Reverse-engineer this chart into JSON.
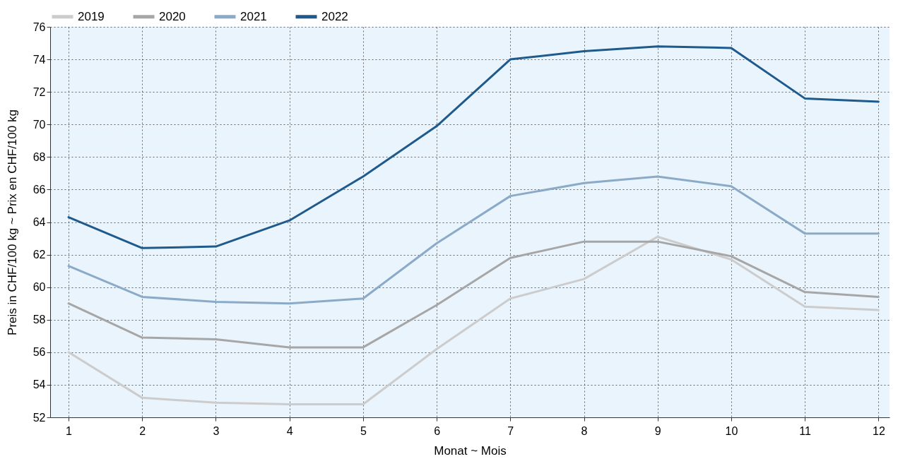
{
  "chart_data": {
    "type": "line",
    "xlabel": "Monat   ~   Mois",
    "ylabel": "Preis in CHF/100 kg   ~   Prix en CHF/100 kg",
    "x": [
      1,
      2,
      3,
      4,
      5,
      6,
      7,
      8,
      9,
      10,
      11,
      12
    ],
    "xlim": [
      0.75,
      12.15
    ],
    "xticks": [
      1,
      2,
      3,
      4,
      5,
      6,
      7,
      8,
      9,
      10,
      11,
      12
    ],
    "ylim": [
      52,
      76
    ],
    "yticks": [
      52,
      54,
      56,
      58,
      60,
      62,
      64,
      66,
      68,
      70,
      72,
      74,
      76
    ],
    "grid": true,
    "legend": "top left",
    "marker": "none",
    "line_style": "solid",
    "series": [
      {
        "name": "2019",
        "color": "#cccccc",
        "values": [
          56.0,
          53.2,
          52.9,
          52.8,
          52.8,
          56.2,
          59.3,
          60.5,
          63.1,
          61.7,
          58.8,
          58.6
        ]
      },
      {
        "name": "2020",
        "color": "#a6a6a6",
        "values": [
          59.0,
          56.9,
          56.8,
          56.3,
          56.3,
          58.9,
          61.8,
          62.8,
          62.8,
          61.9,
          59.7,
          59.4
        ]
      },
      {
        "name": "2021",
        "color": "#8aaac8",
        "values": [
          61.3,
          59.4,
          59.1,
          59.0,
          59.3,
          62.7,
          65.6,
          66.4,
          66.8,
          66.2,
          63.3,
          63.3
        ]
      },
      {
        "name": "2022",
        "color": "#1f5a8c",
        "values": [
          64.3,
          62.4,
          62.5,
          64.1,
          66.8,
          69.9,
          74.0,
          74.5,
          74.8,
          74.7,
          71.6,
          71.4
        ]
      }
    ]
  }
}
